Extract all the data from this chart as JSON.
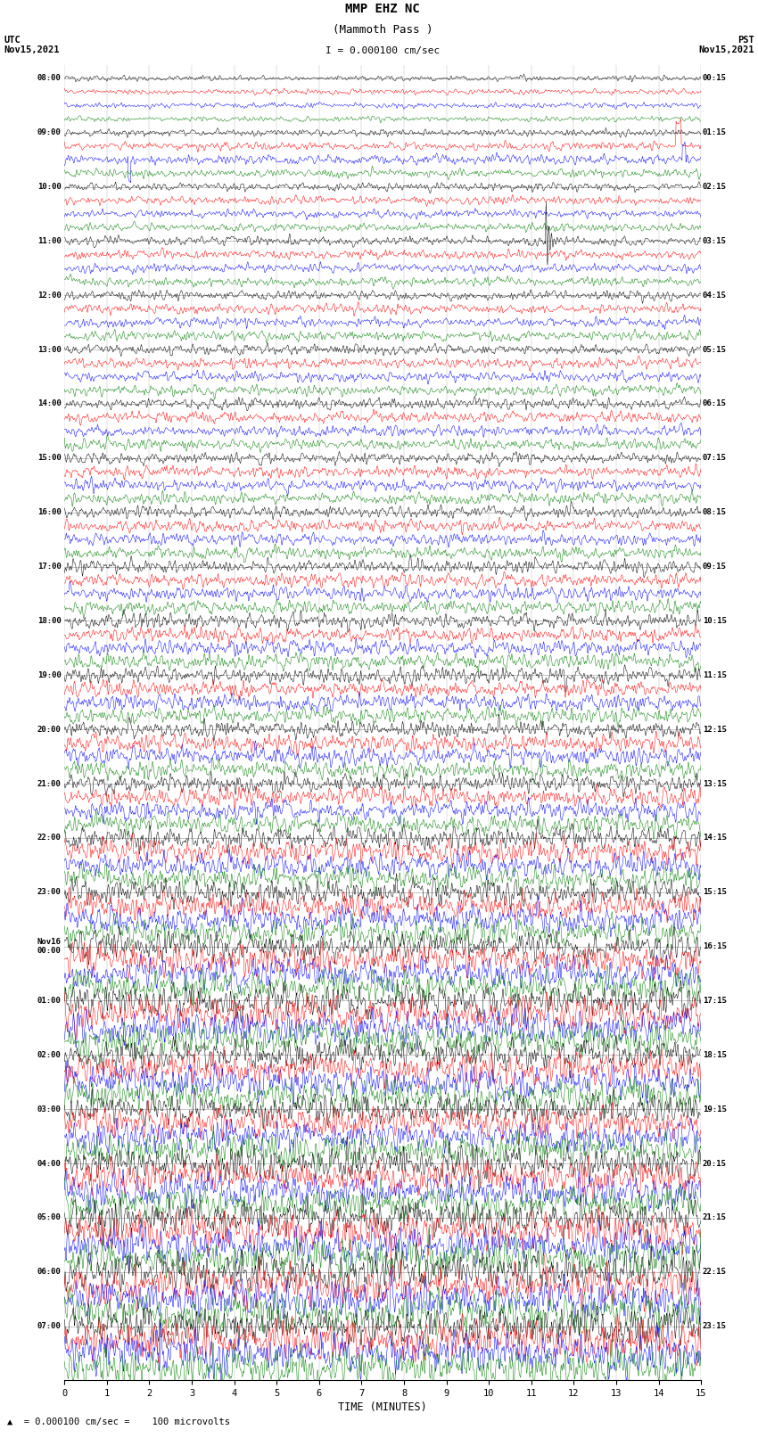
{
  "title_line1": "MMP EHZ NC",
  "title_line2": "(Mammoth Pass )",
  "scale_label": "I = 0.000100 cm/sec",
  "scale_label_bottom": "A  = 0.000100 cm/sec =    100 microvolts",
  "utc_label": "UTC\nNov15,2021",
  "pst_label": "PST\nNov15,2021",
  "xlabel": "TIME (MINUTES)",
  "left_times_utc": [
    "08:00",
    "09:00",
    "10:00",
    "11:00",
    "12:00",
    "13:00",
    "14:00",
    "15:00",
    "16:00",
    "17:00",
    "18:00",
    "19:00",
    "20:00",
    "21:00",
    "22:00",
    "23:00",
    "Nov16\n00:00",
    "01:00",
    "02:00",
    "03:00",
    "04:00",
    "05:00",
    "06:00",
    "07:00"
  ],
  "right_times_pst": [
    "00:15",
    "01:15",
    "02:15",
    "03:15",
    "04:15",
    "05:15",
    "06:15",
    "07:15",
    "08:15",
    "09:15",
    "10:15",
    "11:15",
    "12:15",
    "13:15",
    "14:15",
    "15:15",
    "16:15",
    "17:15",
    "18:15",
    "19:15",
    "20:15",
    "21:15",
    "22:15",
    "23:15"
  ],
  "colors_cycle": [
    "black",
    "red",
    "blue",
    "green"
  ],
  "n_rows": 96,
  "bg_color": "white",
  "x_ticks": [
    0,
    1,
    2,
    3,
    4,
    5,
    6,
    7,
    8,
    9,
    10,
    11,
    12,
    13,
    14,
    15
  ],
  "x_lim": [
    0,
    15
  ],
  "figwidth": 8.5,
  "figheight": 16.13,
  "amplitude_by_row": [
    0.08,
    0.08,
    0.08,
    0.08,
    0.1,
    0.12,
    0.14,
    0.12,
    0.12,
    0.12,
    0.12,
    0.12,
    0.13,
    0.13,
    0.13,
    0.13,
    0.14,
    0.14,
    0.14,
    0.14,
    0.15,
    0.15,
    0.15,
    0.15,
    0.16,
    0.16,
    0.16,
    0.16,
    0.17,
    0.17,
    0.17,
    0.17,
    0.18,
    0.18,
    0.18,
    0.18,
    0.2,
    0.2,
    0.2,
    0.2,
    0.22,
    0.22,
    0.22,
    0.22,
    0.24,
    0.24,
    0.24,
    0.24,
    0.26,
    0.26,
    0.26,
    0.26,
    0.28,
    0.28,
    0.28,
    0.28,
    0.35,
    0.35,
    0.35,
    0.35,
    0.4,
    0.4,
    0.4,
    0.4,
    0.45,
    0.45,
    0.45,
    0.45,
    0.5,
    0.5,
    0.5,
    0.5,
    0.48,
    0.48,
    0.48,
    0.48,
    0.45,
    0.45,
    0.45,
    0.45,
    0.5,
    0.5,
    0.5,
    0.5,
    0.55,
    0.55,
    0.55,
    0.55,
    0.58,
    0.58,
    0.58,
    0.58,
    0.6,
    0.6,
    0.6,
    0.6
  ]
}
